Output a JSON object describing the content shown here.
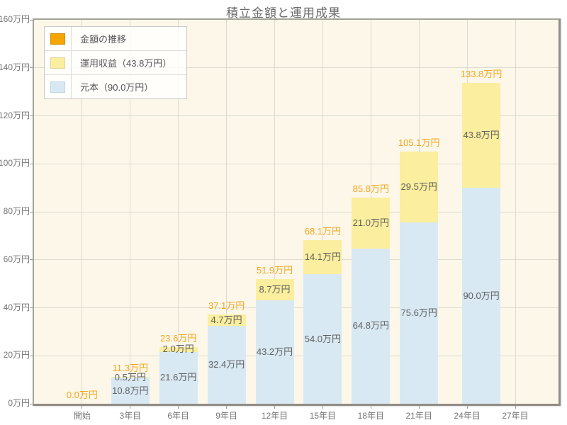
{
  "title": "積立金額と運用成果",
  "legend": {
    "items": [
      {
        "label": "金額の推移",
        "color": "#f6a400",
        "border": "#d18c00"
      },
      {
        "label": "運用収益（43.8万円）",
        "color": "#fbee9e",
        "border": "#ded39c"
      },
      {
        "label": "元本（90.0万円）",
        "color": "#d9e9f3",
        "border": "#bdd5e4"
      }
    ]
  },
  "colors": {
    "principal": "#d9e9f3",
    "profit": "#fbee9e",
    "total_label": "#f6a51c",
    "plot_bg": "#fcf7e9",
    "grid": "#dcdad0"
  },
  "chart_data": {
    "type": "bar",
    "stacked": true,
    "title": "積立金額と運用成果",
    "categories": [
      "開始",
      "3年目",
      "6年目",
      "9年目",
      "12年目",
      "15年目",
      "18年目",
      "21年目",
      "24年目",
      "27年目"
    ],
    "series": [
      {
        "name": "元本",
        "values": [
          0,
          10.8,
          21.6,
          32.4,
          43.2,
          54.0,
          64.8,
          75.6,
          90.0,
          null
        ]
      },
      {
        "name": "運用収益",
        "values": [
          0,
          0.5,
          2.0,
          4.7,
          8.7,
          14.1,
          21.0,
          29.5,
          43.8,
          null
        ]
      }
    ],
    "totals": [
      0.0,
      11.3,
      23.6,
      37.1,
      51.9,
      68.1,
      85.8,
      105.1,
      133.8,
      null
    ],
    "value_suffix": "万円",
    "ylim": [
      0,
      160
    ],
    "ytick_step": 20,
    "ytick_labels": [
      "0万円",
      "20万円",
      "40万円",
      "60万円",
      "80万円",
      "100万円",
      "120万円",
      "140万円",
      "160万円"
    ],
    "legend_position": "top-left",
    "grid": true
  }
}
